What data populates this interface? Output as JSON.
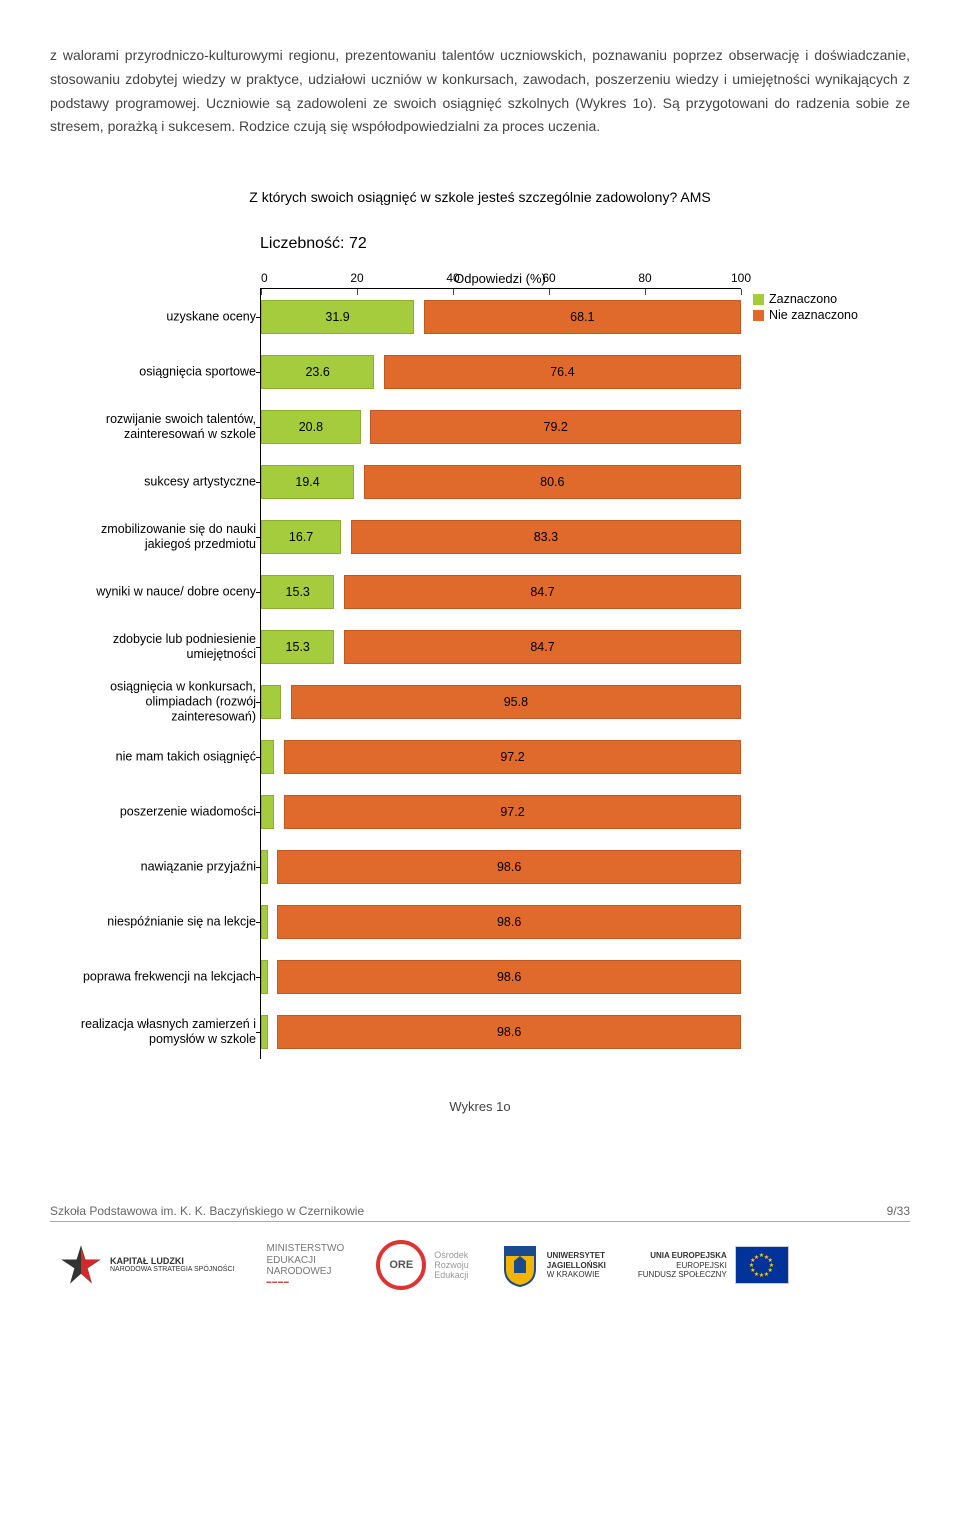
{
  "body_text": "z walorami przyrodniczo-kulturowymi regionu, prezentowaniu talentów uczniowskich, poznawaniu poprzez obserwację i doświadczanie, stosowaniu zdobytej wiedzy w praktyce, udziałowi uczniów w konkursach, zawodach, poszerzeniu wiedzy i umiejętności wynikających z podstawy programowej. Uczniowie są zadowoleni ze swoich osiągnięć szkolnych (Wykres 1o). Są przygotowani do radzenia sobie ze stresem, porażką i sukcesem. Rodzice czują się współodpowiedzialni za proces uczenia.",
  "chart": {
    "title": "Z których swoich osiągnięć w szkole jesteś szczególnie zadowolony? AMS",
    "count_label": "Liczebność: 72",
    "axis_title": "Odpowiedzi (%)",
    "xlim": [
      0,
      100
    ],
    "ticks": [
      0,
      20,
      40,
      60,
      80,
      100
    ],
    "colors": {
      "yes": "#a4cc3c",
      "no": "#e06a2b"
    },
    "legend": {
      "yes": "Zaznaczono",
      "no": "Nie zaznaczono"
    },
    "categories": [
      {
        "label": "uzyskane oceny",
        "yes": 31.9,
        "no": 68.1
      },
      {
        "label": "osiągnięcia sportowe",
        "yes": 23.6,
        "no": 76.4
      },
      {
        "label": "rozwijanie swoich talentów, zainteresowań w szkole",
        "yes": 20.8,
        "no": 79.2
      },
      {
        "label": "sukcesy artystyczne",
        "yes": 19.4,
        "no": 80.6
      },
      {
        "label": "zmobilizowanie się do nauki jakiegoś przedmiotu",
        "yes": 16.7,
        "no": 83.3
      },
      {
        "label": "wyniki w nauce/ dobre oceny",
        "yes": 15.3,
        "no": 84.7
      },
      {
        "label": "zdobycie lub podniesienie umiejętności",
        "yes": 15.3,
        "no": 84.7
      },
      {
        "label": "osiągnięcia w konkursach, olimpiadach (rozwój zainteresowań)",
        "yes": 4.2,
        "no": 95.8
      },
      {
        "label": "nie mam takich osiągnięć",
        "yes": 2.8,
        "no": 97.2
      },
      {
        "label": "poszerzenie wiadomości",
        "yes": 2.8,
        "no": 97.2
      },
      {
        "label": "nawiązanie przyjaźni",
        "yes": 1.4,
        "no": 98.6
      },
      {
        "label": "niespóźnianie się na lekcje",
        "yes": 1.4,
        "no": 98.6
      },
      {
        "label": "poprawa frekwencji na lekcjach",
        "yes": 1.4,
        "no": 98.6
      },
      {
        "label": "realizacja własnych zamierzeń i pomysłów w szkole",
        "yes": 1.4,
        "no": 98.6
      }
    ],
    "label_threshold": 6
  },
  "figure_caption": "Wykres 1o",
  "footer": {
    "left": "Szkoła Podstawowa im. K. K. Baczyńskiego w Czernikowie",
    "right": "9/33"
  },
  "logos": {
    "kl": {
      "line1": "KAPITAŁ LUDZKI",
      "line2": "NARODOWA STRATEGIA SPÓJNOŚCI"
    },
    "men": {
      "line1": "MINISTERSTWO",
      "line2": "EDUKACJI",
      "line3": "NARODOWEJ"
    },
    "ore": {
      "abbr": "ORE",
      "line1": "Ośrodek",
      "line2": "Rozwoju",
      "line3": "Edukacji"
    },
    "uj": {
      "line1": "UNIWERSYTET",
      "line2": "JAGIELLOŃSKI",
      "line3": "W KRAKOWIE"
    },
    "eu": {
      "line1": "UNIA EUROPEJSKA",
      "line2": "EUROPEJSKI",
      "line3": "FUNDUSZ SPOŁECZNY"
    }
  }
}
